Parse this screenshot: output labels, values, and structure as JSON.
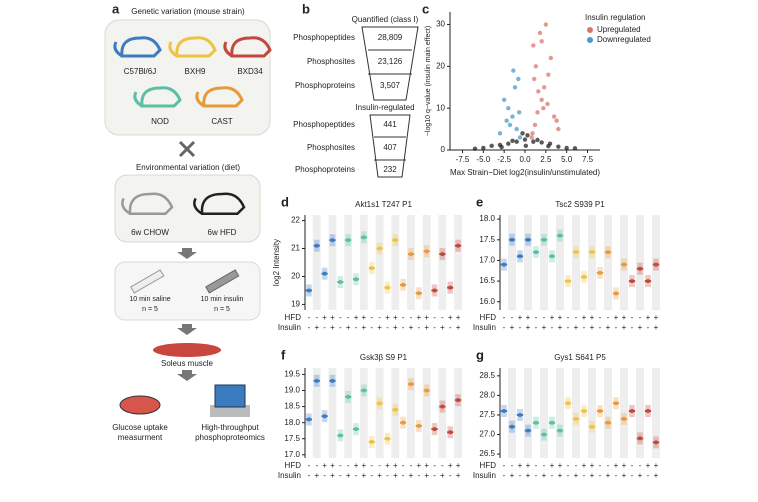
{
  "panel_a": {
    "label": "a",
    "genetic_title": "Genetic variation (mouse strain)",
    "strains": [
      {
        "name": "C57Bl/6J",
        "color": "#3d7cc0"
      },
      {
        "name": "BXH9",
        "color": "#efc243"
      },
      {
        "name": "BXD34",
        "color": "#c2473d"
      },
      {
        "name": "NOD",
        "color": "#5bbfa6"
      },
      {
        "name": "CAST",
        "color": "#e79a3c"
      }
    ],
    "env_title": "Environmental variation (diet)",
    "diets": [
      "6w CHOW",
      "6w HFD"
    ],
    "treatments": [
      {
        "name": "10 min saline",
        "n": "n = 5"
      },
      {
        "name": "10 min insulin",
        "n": "n = 5"
      }
    ],
    "muscle": "Soleus muscle",
    "outputs": [
      [
        "Glucose uptake",
        "measurment"
      ],
      [
        "High-throughput",
        "phosphoproteomics"
      ]
    ]
  },
  "panel_b": {
    "label": "b",
    "groups": [
      {
        "title": "Quantified (class I)",
        "rows": [
          {
            "name": "Phosphopeptides",
            "count": "28,809"
          },
          {
            "name": "Phosphosites",
            "count": "23,126"
          },
          {
            "name": "Phosphoproteins",
            "count": "3,507"
          }
        ]
      },
      {
        "title": "Insulin-regulated",
        "rows": [
          {
            "name": "Phosphopeptides",
            "count": "441"
          },
          {
            "name": "Phosphosites",
            "count": "407"
          },
          {
            "name": "Phosphoproteins",
            "count": "232"
          }
        ]
      }
    ]
  },
  "chart_data": [
    {
      "label": "c",
      "type": "scatter",
      "x_label": "Max Strain−Diet log2(insulin/unstimulated)",
      "y_label": "−log10 q−value (insulin main effect)",
      "xlim": [
        -9,
        9
      ],
      "ylim": [
        0,
        33
      ],
      "xticks": [
        -7.5,
        {
          "value": -5,
          "label": "-5.0"
        },
        -2.5,
        {
          "value": 0,
          "label": "0.0"
        },
        2.5,
        {
          "value": 5,
          "label": "5.0"
        },
        7.5
      ],
      "yticks": [
        0,
        10,
        20,
        30
      ],
      "legend_title": "Insulin regulation",
      "series": [
        {
          "color": "#222222",
          "x": [
            -5,
            -4,
            -3,
            -2,
            -1,
            0,
            1,
            2,
            3,
            4,
            5,
            -6,
            6,
            -0.3,
            0.3,
            -2.8,
            2.8,
            -1.5,
            1.5,
            0.1
          ],
          "values": [
            0.5,
            1,
            1.2,
            1.5,
            2,
            2.5,
            2,
            1.8,
            1.5,
            0.8,
            0.5,
            0.3,
            0.4,
            4,
            3.5,
            0.7,
            0.9,
            2.2,
            2.4,
            1
          ]
        },
        {
          "name": "Upregulated",
          "color": "#d9776b",
          "x": [
            0.8,
            1.2,
            1.5,
            2,
            2.3,
            2.8,
            3.1,
            1,
            1.8,
            2.5,
            3.5,
            4,
            1.3,
            2.2,
            0.9,
            1.6,
            2.7,
            3.8,
            1.1,
            2
          ],
          "values": [
            3,
            6,
            9,
            12,
            15,
            18,
            22,
            25,
            28,
            30,
            8,
            5,
            20,
            10,
            4,
            14,
            11,
            7,
            17,
            26
          ]
        },
        {
          "name": "Downregulated",
          "color": "#4f98c9",
          "x": [
            -0.6,
            -1,
            -1.5,
            -2,
            -2.5,
            -1.2,
            -0.8,
            -1.8,
            -3,
            -1.4,
            -0.7,
            -2.2
          ],
          "values": [
            3,
            5,
            8,
            10,
            12,
            15,
            17,
            6,
            4,
            19,
            9,
            7
          ]
        }
      ]
    },
    {
      "label": "d",
      "type": "strip",
      "title": "Akt1s1 T247 P1",
      "y_label": "log2 Intensity",
      "ylim": [
        18.8,
        22.2
      ],
      "yticks": [
        19,
        20,
        21,
        22
      ],
      "series": [
        {
          "color": "#3d7cc0",
          "values": [
            19.5,
            21.1,
            20.1,
            21.3
          ]
        },
        {
          "color": "#5bbfa6",
          "values": [
            19.8,
            21.3,
            19.9,
            21.4
          ]
        },
        {
          "color": "#efc243",
          "values": [
            20.3,
            21,
            19.6,
            21.3
          ]
        },
        {
          "color": "#e79a3c",
          "values": [
            19.7,
            20.8,
            19.4,
            20.9
          ]
        },
        {
          "color": "#c2473d",
          "values": [
            19.5,
            20.8,
            19.6,
            21.1
          ]
        }
      ]
    },
    {
      "label": "e",
      "type": "strip",
      "title": "Tsc2 S939 P1",
      "ylim": [
        15.8,
        18.1
      ],
      "yticks": [
        {
          "value": 16,
          "label": "16.0"
        },
        16.5,
        {
          "value": 17,
          "label": "17.0"
        },
        17.5,
        {
          "value": 18,
          "label": "18.0"
        }
      ],
      "series": [
        {
          "color": "#3d7cc0",
          "values": [
            16.9,
            17.5,
            17.1,
            17.5
          ]
        },
        {
          "color": "#5bbfa6",
          "values": [
            17.2,
            17.5,
            17.1,
            17.6
          ]
        },
        {
          "color": "#efc243",
          "values": [
            16.5,
            17.2,
            16.6,
            17.2
          ]
        },
        {
          "color": "#e79a3c",
          "values": [
            16.7,
            17.2,
            16.2,
            16.9
          ]
        },
        {
          "color": "#c2473d",
          "values": [
            16.5,
            16.8,
            16.5,
            16.9
          ]
        }
      ]
    },
    {
      "label": "f",
      "type": "strip",
      "title": "Gsk3β S9 P1",
      "ylim": [
        16.9,
        19.7
      ],
      "yticks": [
        {
          "value": 17,
          "label": "17.0"
        },
        17.5,
        {
          "value": 18,
          "label": "18.0"
        },
        18.5,
        {
          "value": 19,
          "label": "19.0"
        },
        19.5
      ],
      "series": [
        {
          "color": "#3d7cc0",
          "values": [
            18.1,
            19.3,
            18.2,
            19.3
          ]
        },
        {
          "color": "#5bbfa6",
          "values": [
            17.6,
            18.8,
            17.8,
            19
          ]
        },
        {
          "color": "#efc243",
          "values": [
            17.4,
            18.6,
            17.5,
            18.4
          ]
        },
        {
          "color": "#e79a3c",
          "values": [
            18,
            19.2,
            17.9,
            19
          ]
        },
        {
          "color": "#c2473d",
          "values": [
            17.8,
            18.5,
            17.7,
            18.7
          ]
        }
      ]
    },
    {
      "label": "g",
      "type": "strip",
      "title": "Gys1 S641 P5",
      "ylim": [
        26.4,
        28.7
      ],
      "yticks": [
        26.5,
        {
          "value": 27,
          "label": "27.0"
        },
        27.5,
        {
          "value": 28,
          "label": "28.0"
        },
        28.5
      ],
      "series": [
        {
          "color": "#3d7cc0",
          "values": [
            27.6,
            27.2,
            27.5,
            27.1
          ]
        },
        {
          "color": "#5bbfa6",
          "values": [
            27.3,
            27,
            27.3,
            27.1
          ]
        },
        {
          "color": "#efc243",
          "values": [
            27.8,
            27.4,
            27.6,
            27.2
          ]
        },
        {
          "color": "#e79a3c",
          "values": [
            27.6,
            27.3,
            27.8,
            27.4
          ]
        },
        {
          "color": "#c2473d",
          "values": [
            27.6,
            26.9,
            27.6,
            26.8
          ]
        }
      ]
    }
  ],
  "conditions": {
    "row_labels": [
      "HFD",
      "Insulin"
    ],
    "hfd": [
      "-",
      "-",
      "+",
      "+"
    ],
    "insulin": [
      "-",
      "+",
      "-",
      "+"
    ]
  }
}
